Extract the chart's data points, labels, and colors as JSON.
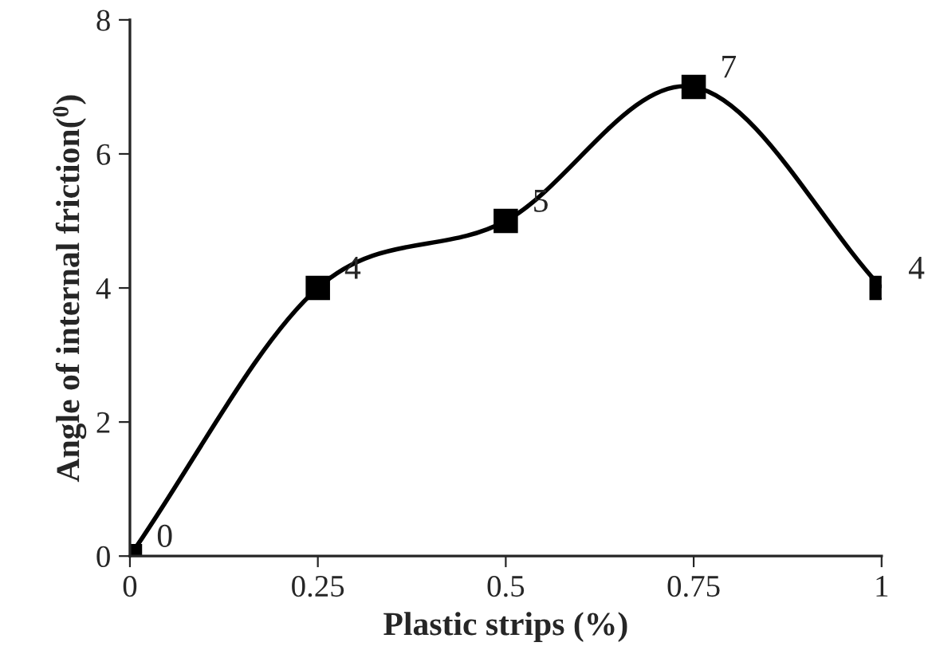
{
  "chart_data": {
    "type": "line",
    "xlabel": "Plastic strips (%)",
    "ylabel": "Angle of internal friction($^{0}$)",
    "x": [
      0,
      0.25,
      0.5,
      0.75,
      1
    ],
    "series": [
      {
        "color": "#000000",
        "values": [
          0,
          4,
          5,
          7,
          4
        ]
      }
    ],
    "xlim": [
      0,
      1
    ],
    "xticks": [
      0,
      0.25,
      0.5,
      0.75,
      1
    ],
    "ylim": [
      0,
      8
    ],
    "yticks": [
      0,
      2,
      4,
      6,
      8
    ],
    "marker": "square",
    "line_style": "solid",
    "data_labels": true,
    "grid": false
  }
}
